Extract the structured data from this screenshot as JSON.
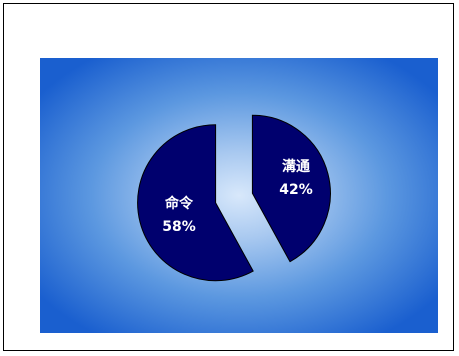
{
  "chart_data": {
    "type": "pie",
    "exploded": true,
    "slices": [
      {
        "label": "溝通",
        "value": 42,
        "value_label": "42%",
        "color": "#00006e"
      },
      {
        "label": "命令",
        "value": 58,
        "value_label": "58%",
        "color": "#00006e"
      }
    ],
    "plot_background": "#1a5fcf"
  }
}
